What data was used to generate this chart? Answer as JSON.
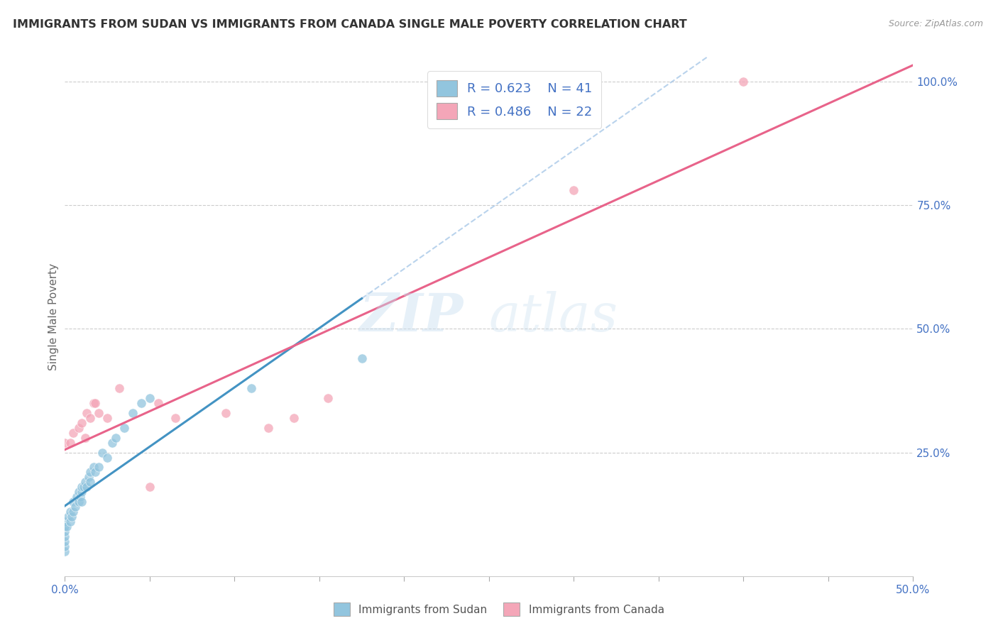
{
  "title": "IMMIGRANTS FROM SUDAN VS IMMIGRANTS FROM CANADA SINGLE MALE POVERTY CORRELATION CHART",
  "source": "Source: ZipAtlas.com",
  "ylabel": "Single Male Poverty",
  "xlim": [
    0,
    0.5
  ],
  "ylim": [
    0,
    1.05
  ],
  "legend_r1": "R = 0.623",
  "legend_n1": "N = 41",
  "legend_r2": "R = 0.486",
  "legend_n2": "N = 22",
  "color_sudan": "#92c5de",
  "color_canada": "#f4a6b8",
  "color_sudan_line": "#4393c3",
  "color_canada_line": "#e8638a",
  "color_sudan_dash": "#a8c8e8",
  "sudan_x": [
    0.0,
    0.0,
    0.0,
    0.0,
    0.0,
    0.0,
    0.0,
    0.001,
    0.002,
    0.003,
    0.003,
    0.004,
    0.005,
    0.005,
    0.006,
    0.007,
    0.008,
    0.008,
    0.009,
    0.01,
    0.01,
    0.01,
    0.011,
    0.012,
    0.013,
    0.014,
    0.015,
    0.015,
    0.017,
    0.018,
    0.02,
    0.022,
    0.025,
    0.028,
    0.03,
    0.035,
    0.04,
    0.045,
    0.05,
    0.11,
    0.175
  ],
  "sudan_y": [
    0.05,
    0.06,
    0.07,
    0.08,
    0.09,
    0.1,
    0.11,
    0.1,
    0.12,
    0.11,
    0.13,
    0.12,
    0.13,
    0.15,
    0.14,
    0.16,
    0.15,
    0.17,
    0.16,
    0.15,
    0.17,
    0.18,
    0.18,
    0.19,
    0.18,
    0.2,
    0.19,
    0.21,
    0.22,
    0.21,
    0.22,
    0.25,
    0.24,
    0.27,
    0.28,
    0.3,
    0.33,
    0.35,
    0.36,
    0.38,
    0.44
  ],
  "canada_x": [
    0.0,
    0.003,
    0.005,
    0.008,
    0.01,
    0.012,
    0.013,
    0.015,
    0.017,
    0.018,
    0.02,
    0.025,
    0.032,
    0.05,
    0.055,
    0.065,
    0.095,
    0.12,
    0.135,
    0.155,
    0.3,
    0.4
  ],
  "canada_y": [
    0.27,
    0.27,
    0.29,
    0.3,
    0.31,
    0.28,
    0.33,
    0.32,
    0.35,
    0.35,
    0.33,
    0.32,
    0.38,
    0.18,
    0.35,
    0.32,
    0.33,
    0.3,
    0.32,
    0.36,
    0.78,
    1.0
  ],
  "watermark_zip": "ZIP",
  "watermark_atlas": "atlas",
  "background_color": "#ffffff",
  "grid_color": "#dddddd"
}
